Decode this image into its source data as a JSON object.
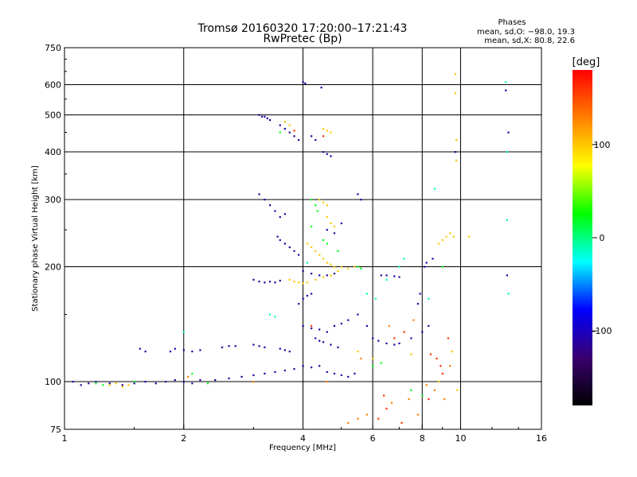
{
  "chart_data": {
    "type": "scatter",
    "title": "Tromsø 20160320 17:20:00–17:21:43",
    "subtitle": "RwPretec (Bp)",
    "xlabel": "Frequency [MHz]",
    "ylabel": "Stationary phase Virtual Height [km]",
    "x_scale": "log",
    "y_scale": "log",
    "xlim": [
      1,
      16
    ],
    "ylim": [
      75,
      750
    ],
    "x_ticks": [
      1,
      2,
      4,
      6,
      8,
      10,
      16
    ],
    "y_ticks": [
      75,
      100,
      200,
      300,
      400,
      500,
      600,
      750
    ],
    "x_grid": [
      2,
      4,
      6,
      8,
      10
    ],
    "y_grid": [
      100,
      200,
      300,
      400,
      500,
      600
    ],
    "grid": true,
    "phase_info": {
      "title": "Phases",
      "line1": "mean, sd,O: −98.0, 19.3",
      "line2": "mean, sd,X:  80.8, 22.6"
    },
    "colorbar": {
      "unit": "[deg]",
      "ticks": [
        100,
        0,
        -100
      ],
      "range": [
        -180,
        180
      ],
      "colors": [
        "#000000",
        "#3a0070",
        "#0000ff",
        "#00ffff",
        "#00ff00",
        "#ffff00",
        "#ff8000",
        "#ff0000"
      ]
    },
    "series": [
      {
        "color_phase": -110,
        "points": [
          [
            1.05,
            100
          ],
          [
            1.1,
            98
          ],
          [
            1.15,
            99
          ],
          [
            1.2,
            100
          ],
          [
            1.3,
            99
          ],
          [
            1.4,
            98
          ],
          [
            1.5,
            99
          ],
          [
            1.6,
            100
          ],
          [
            1.7,
            99
          ],
          [
            1.8,
            100
          ],
          [
            1.9,
            101
          ],
          [
            2.0,
            100
          ],
          [
            2.1,
            99
          ],
          [
            2.2,
            101
          ],
          [
            2.4,
            101
          ],
          [
            2.6,
            102
          ],
          [
            2.8,
            103
          ],
          [
            3.0,
            104
          ],
          [
            3.2,
            105
          ],
          [
            3.4,
            106
          ],
          [
            3.6,
            107
          ],
          [
            3.8,
            108
          ],
          [
            4.0,
            110
          ],
          [
            4.2,
            109
          ],
          [
            4.4,
            110
          ],
          [
            4.6,
            106
          ],
          [
            4.8,
            105
          ],
          [
            5.0,
            104
          ],
          [
            5.2,
            103
          ],
          [
            5.4,
            105
          ],
          [
            1.85,
            120
          ],
          [
            1.9,
            122
          ],
          [
            2.0,
            121
          ],
          [
            2.1,
            120
          ],
          [
            2.2,
            121
          ],
          [
            2.5,
            123
          ],
          [
            2.6,
            124
          ],
          [
            2.7,
            124
          ],
          [
            1.55,
            122
          ],
          [
            1.6,
            120
          ],
          [
            3.1,
            500
          ],
          [
            3.15,
            495
          ],
          [
            3.2,
            495
          ],
          [
            3.25,
            490
          ],
          [
            3.3,
            485
          ],
          [
            4.0,
            610
          ],
          [
            4.05,
            605
          ],
          [
            4.45,
            590
          ],
          [
            3.5,
            470
          ],
          [
            3.6,
            460
          ],
          [
            3.7,
            450
          ],
          [
            3.8,
            440
          ],
          [
            3.9,
            430
          ],
          [
            4.2,
            440
          ],
          [
            4.3,
            430
          ],
          [
            4.5,
            400
          ],
          [
            4.6,
            395
          ],
          [
            4.7,
            390
          ],
          [
            3.1,
            310
          ],
          [
            3.2,
            300
          ],
          [
            3.3,
            290
          ],
          [
            3.4,
            280
          ],
          [
            3.5,
            270
          ],
          [
            3.6,
            275
          ],
          [
            3.45,
            240
          ],
          [
            3.5,
            235
          ],
          [
            3.6,
            230
          ],
          [
            3.7,
            225
          ],
          [
            3.8,
            220
          ],
          [
            3.9,
            215
          ],
          [
            3.0,
            185
          ],
          [
            3.1,
            183
          ],
          [
            3.2,
            182
          ],
          [
            3.3,
            183
          ],
          [
            3.4,
            182
          ],
          [
            3.5,
            184
          ],
          [
            4.0,
            195
          ],
          [
            4.2,
            192
          ],
          [
            4.4,
            190
          ],
          [
            4.6,
            190
          ],
          [
            4.8,
            192
          ],
          [
            6.3,
            190
          ],
          [
            6.5,
            190
          ],
          [
            6.8,
            189
          ],
          [
            7.0,
            188
          ],
          [
            5.5,
            310
          ],
          [
            5.6,
            300
          ],
          [
            5.0,
            260
          ],
          [
            4.6,
            250
          ],
          [
            4.8,
            245
          ],
          [
            4.0,
            140
          ],
          [
            4.2,
            138
          ],
          [
            4.4,
            137
          ],
          [
            4.6,
            135
          ],
          [
            4.8,
            140
          ],
          [
            5.0,
            142
          ],
          [
            5.2,
            145
          ],
          [
            5.5,
            150
          ],
          [
            5.8,
            140
          ],
          [
            6.0,
            130
          ],
          [
            6.2,
            128
          ],
          [
            6.5,
            126
          ],
          [
            6.8,
            125
          ],
          [
            7.0,
            126
          ],
          [
            7.5,
            130
          ],
          [
            8.0,
            135
          ],
          [
            8.3,
            140
          ],
          [
            7.8,
            160
          ],
          [
            7.9,
            170
          ],
          [
            8.1,
            200
          ],
          [
            8.2,
            205
          ],
          [
            8.5,
            210
          ],
          [
            4.3,
            130
          ],
          [
            4.4,
            128
          ],
          [
            4.5,
            127
          ],
          [
            4.7,
            125
          ],
          [
            4.9,
            123
          ],
          [
            3.9,
            160
          ],
          [
            4.0,
            165
          ],
          [
            4.1,
            168
          ],
          [
            4.2,
            170
          ],
          [
            9.7,
            400
          ],
          [
            13.0,
            580
          ],
          [
            13.2,
            450
          ],
          [
            13.1,
            190
          ],
          [
            3.0,
            125
          ],
          [
            3.1,
            124
          ],
          [
            3.2,
            123
          ],
          [
            3.5,
            122
          ],
          [
            3.6,
            121
          ],
          [
            3.7,
            120
          ]
        ]
      },
      {
        "color_phase": 100,
        "points": [
          [
            1.3,
            98
          ],
          [
            1.35,
            99
          ],
          [
            1.4,
            97
          ],
          [
            1.45,
            98
          ],
          [
            3.6,
            480
          ],
          [
            3.7,
            470
          ],
          [
            4.5,
            460
          ],
          [
            4.6,
            455
          ],
          [
            4.7,
            450
          ],
          [
            4.6,
            270
          ],
          [
            4.7,
            260
          ],
          [
            4.8,
            255
          ],
          [
            4.1,
            230
          ],
          [
            4.2,
            225
          ],
          [
            4.3,
            220
          ],
          [
            4.4,
            215
          ],
          [
            4.5,
            210
          ],
          [
            4.6,
            205
          ],
          [
            4.7,
            203
          ],
          [
            4.8,
            200
          ],
          [
            5.0,
            200
          ],
          [
            5.2,
            198
          ],
          [
            5.4,
            200
          ],
          [
            3.7,
            185
          ],
          [
            3.8,
            183
          ],
          [
            3.9,
            182
          ],
          [
            4.0,
            181
          ],
          [
            4.1,
            182
          ],
          [
            4.3,
            185
          ],
          [
            4.5,
            188
          ],
          [
            4.7,
            190
          ],
          [
            4.9,
            195
          ],
          [
            4.4,
            300
          ],
          [
            4.5,
            295
          ],
          [
            4.6,
            290
          ],
          [
            9.7,
            640
          ],
          [
            9.7,
            570
          ],
          [
            9.75,
            430
          ],
          [
            9.75,
            380
          ],
          [
            8.8,
            230
          ],
          [
            9.0,
            235
          ],
          [
            9.2,
            240
          ],
          [
            9.4,
            245
          ],
          [
            9.6,
            240
          ],
          [
            10.5,
            240
          ],
          [
            5.5,
            120
          ],
          [
            6.0,
            115
          ],
          [
            7.5,
            118
          ],
          [
            9.5,
            120
          ],
          [
            9.8,
            95
          ],
          [
            8.8,
            100
          ]
        ]
      },
      {
        "color_phase": 20,
        "points": [
          [
            1.2,
            99
          ],
          [
            1.25,
            98
          ],
          [
            1.5,
            100
          ],
          [
            2.3,
            99
          ],
          [
            4.2,
            300
          ],
          [
            4.3,
            290
          ],
          [
            4.35,
            280
          ],
          [
            4.2,
            255
          ],
          [
            4.5,
            235
          ],
          [
            4.6,
            230
          ],
          [
            5.5,
            200
          ],
          [
            5.6,
            198
          ],
          [
            3.5,
            450
          ],
          [
            7.5,
            95
          ],
          [
            8.0,
            92
          ],
          [
            6.0,
            110
          ],
          [
            6.3,
            112
          ],
          [
            2.1,
            105
          ],
          [
            9.0,
            200
          ],
          [
            4.9,
            220
          ]
        ]
      },
      {
        "color_phase": -10,
        "points": [
          [
            13.0,
            610
          ],
          [
            13.1,
            400
          ],
          [
            13.1,
            265
          ],
          [
            13.2,
            170
          ],
          [
            8.6,
            320
          ],
          [
            6.5,
            185
          ],
          [
            7.0,
            200
          ],
          [
            7.2,
            210
          ],
          [
            5.8,
            170
          ],
          [
            6.1,
            165
          ],
          [
            4.1,
            205
          ],
          [
            3.3,
            150
          ],
          [
            3.4,
            148
          ],
          [
            2.0,
            135
          ],
          [
            8.3,
            165
          ]
        ]
      },
      {
        "color_phase": 160,
        "points": [
          [
            6.2,
            80
          ],
          [
            6.5,
            85
          ],
          [
            7.1,
            78
          ],
          [
            8.3,
            90
          ],
          [
            8.4,
            118
          ],
          [
            8.7,
            115
          ],
          [
            8.9,
            110
          ],
          [
            9.0,
            105
          ],
          [
            4.5,
            440
          ],
          [
            3.8,
            455
          ],
          [
            4.2,
            140
          ],
          [
            6.8,
            130
          ],
          [
            7.2,
            135
          ],
          [
            9.3,
            130
          ],
          [
            6.4,
            92
          ]
        ]
      },
      {
        "color_phase": 130,
        "points": [
          [
            5.2,
            78
          ],
          [
            5.5,
            80
          ],
          [
            5.8,
            82
          ],
          [
            6.7,
            88
          ],
          [
            7.4,
            90
          ],
          [
            7.8,
            82
          ],
          [
            8.2,
            98
          ],
          [
            8.6,
            95
          ],
          [
            9.1,
            90
          ],
          [
            4.6,
            100
          ],
          [
            3.0,
            100
          ],
          [
            2.05,
            103
          ],
          [
            5.6,
            115
          ],
          [
            6.6,
            140
          ],
          [
            7.6,
            145
          ],
          [
            9.4,
            110
          ]
        ]
      }
    ]
  }
}
